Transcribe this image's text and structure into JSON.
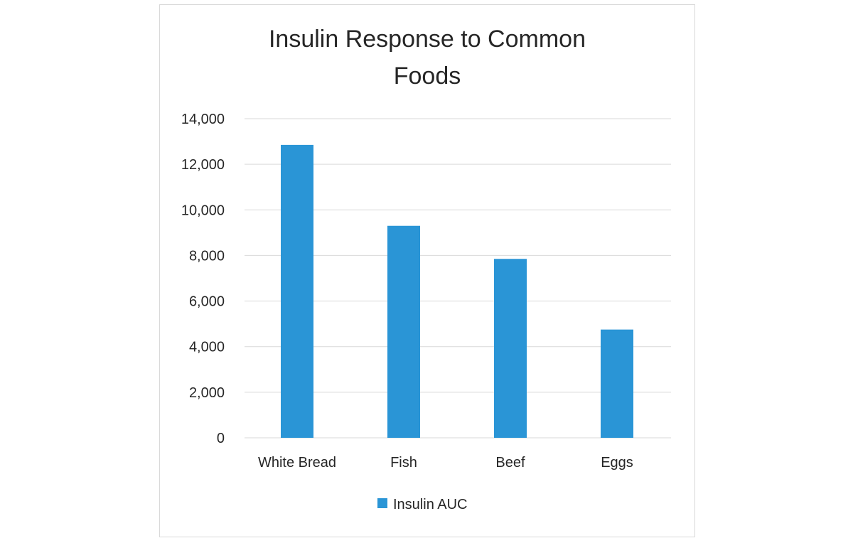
{
  "chart_data": {
    "type": "bar",
    "title": "Insulin Response to Common Foods",
    "title_lines": [
      "Insulin Response to Common",
      "Foods"
    ],
    "xlabel": "",
    "ylabel": "",
    "categories": [
      "White Bread",
      "Fish",
      "Beef",
      "Eggs"
    ],
    "series": [
      {
        "name": "Insulin AUC",
        "values": [
          12850,
          9300,
          7850,
          4750
        ],
        "color": "#2a95d6"
      }
    ],
    "ylim": [
      0,
      14000
    ],
    "yticks": [
      0,
      2000,
      4000,
      6000,
      8000,
      10000,
      12000,
      14000
    ],
    "ytick_labels": [
      "0",
      "2,000",
      "4,000",
      "6,000",
      "8,000",
      "10,000",
      "12,000",
      "14,000"
    ],
    "grid": true,
    "grid_color": "#d9d9d9",
    "legend_position": "bottom"
  }
}
